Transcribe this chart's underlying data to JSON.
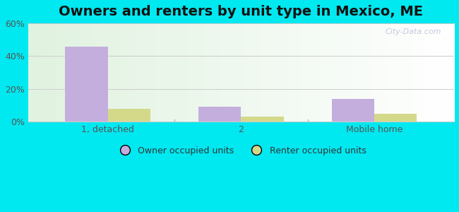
{
  "title": "Owners and renters by unit type in Mexico, ME",
  "categories": [
    "1, detached",
    "2",
    "Mobile home"
  ],
  "owner_values": [
    46,
    9,
    14
  ],
  "renter_values": [
    8,
    3,
    5
  ],
  "owner_color": "#c4aedd",
  "renter_color": "#d4d98a",
  "ylim": [
    0,
    60
  ],
  "yticks": [
    0,
    20,
    40,
    60
  ],
  "ytick_labels": [
    "0%",
    "20%",
    "40%",
    "60%"
  ],
  "bar_width": 0.32,
  "outer_bg": "#00e8f0",
  "title_fontsize": 14,
  "legend_labels": [
    "Owner occupied units",
    "Renter occupied units"
  ],
  "watermark": "City-Data.com",
  "grid_color": "#cccccc",
  "tick_color": "#555555"
}
